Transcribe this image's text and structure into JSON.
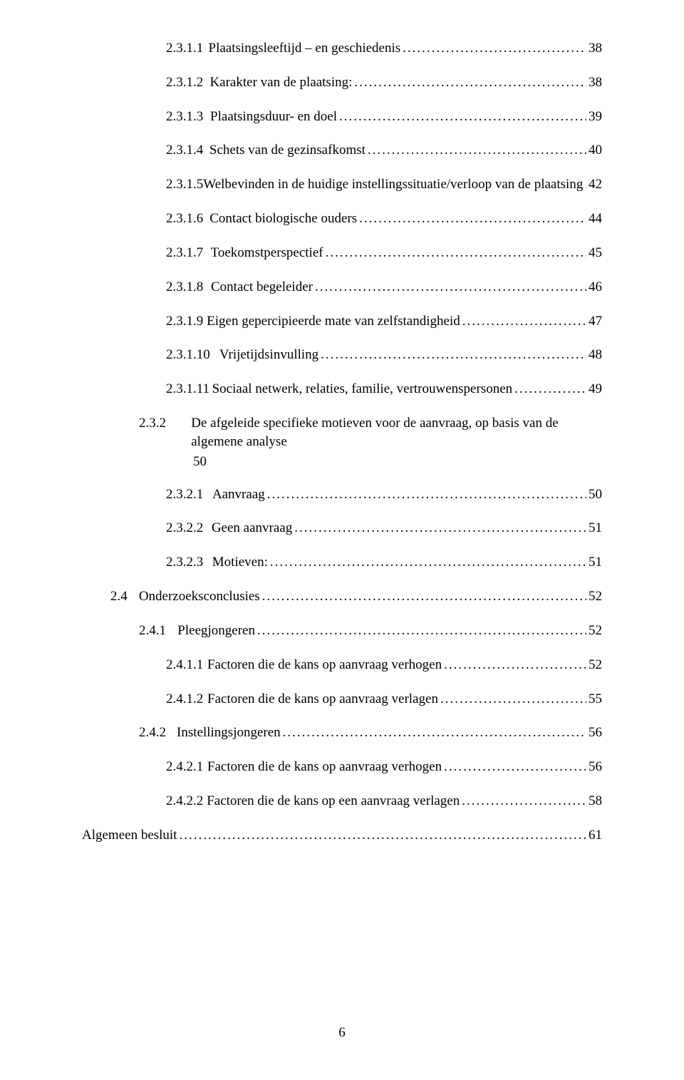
{
  "toc": [
    {
      "indent": 2,
      "num": "2.3.1.1",
      "title": "Plaatsingsleeftijd – en geschiedenis",
      "pg": "38",
      "gap": 4
    },
    {
      "indent": 2,
      "num": "2.3.1.2",
      "title": "Karakter van de plaatsing:",
      "pg": "38",
      "gap": 4
    },
    {
      "indent": 2,
      "num": "2.3.1.3",
      "title": "Plaatsingsduur- en doel",
      "pg": "39",
      "gap": 4
    },
    {
      "indent": 2,
      "num": "2.3.1.4",
      "title": "Schets van de gezinsafkomst",
      "pg": "40",
      "gap": 4
    },
    {
      "indent": 2,
      "num": "2.3.1.5",
      "title": "Welbevinden in de huidige instellingssituatie/verloop van de plaatsing",
      "pg": "42",
      "gap": 4
    },
    {
      "indent": 2,
      "num": "2.3.1.6",
      "title": "Contact biologische ouders",
      "pg": "44",
      "gap": 4
    },
    {
      "indent": 2,
      "num": "2.3.1.7",
      "title": "Toekomstperspectief",
      "pg": "45",
      "gap": 4
    },
    {
      "indent": 2,
      "num": "2.3.1.8",
      "title": "Contact begeleider",
      "pg": "46",
      "gap": 4
    },
    {
      "indent": 2,
      "num": "2.3.1.9",
      "title": "Eigen gepercipieerde mate van zelfstandigheid",
      "pg": "47",
      "gap": 4
    },
    {
      "indent": 2,
      "num": "2.3.1.10",
      "title": "Vrijetijdsinvulling",
      "pg": "48",
      "gap": 5
    },
    {
      "indent": 2,
      "num": "2.3.1.11",
      "title": "Sociaal netwerk, relaties, familie, vertrouwenspersonen",
      "pg": "49",
      "gap": 5
    },
    {
      "indent": 1,
      "num": "2.3.2",
      "title": "De afgeleide specifieke motieven voor de aanvraag, op basis van de algemene analyse",
      "pg": "",
      "gap": 5,
      "trailing50": true
    },
    {
      "indent": 2,
      "num": "2.3.2.1",
      "title": "Aanvraag",
      "pg": "50",
      "gap": 4
    },
    {
      "indent": 2,
      "num": "2.3.2.2",
      "title": "Geen aanvraag",
      "pg": "51",
      "gap": 4
    },
    {
      "indent": 2,
      "num": "2.3.2.3",
      "title": "Motieven:",
      "pg": "51",
      "gap": 4
    },
    {
      "indent": 0,
      "num": "2.4",
      "title": "Onderzoeksconclusies",
      "pg": "52",
      "gap": 5
    },
    {
      "indent": 1,
      "num": "2.4.1",
      "title": "Pleegjongeren",
      "pg": "52",
      "gap": 5
    },
    {
      "indent": 2,
      "num": "2.4.1.1",
      "title": "Factoren die de kans op aanvraag verhogen",
      "pg": "52",
      "gap": 4
    },
    {
      "indent": 2,
      "num": "2.4.1.2",
      "title": "Factoren die de kans op aanvraag verlagen",
      "pg": "55",
      "gap": 4
    },
    {
      "indent": 1,
      "num": "2.4.2",
      "title": "Instellingsjongeren",
      "pg": "56",
      "gap": 5
    },
    {
      "indent": 2,
      "num": "2.4.2.1",
      "title": "Factoren die de kans op aanvraag verhogen",
      "pg": "56",
      "gap": 4
    },
    {
      "indent": 2,
      "num": "2.4.2.2",
      "title": "Factoren die de kans op een aanvraag verlagen",
      "pg": "58",
      "gap": 4
    },
    {
      "indent": -1,
      "num": "",
      "title": "Algemeen besluit",
      "pg": "61",
      "gap": 0
    }
  ],
  "trailing50_text": "50",
  "page_number": "6",
  "dots": "........................................................................................................................................................................"
}
